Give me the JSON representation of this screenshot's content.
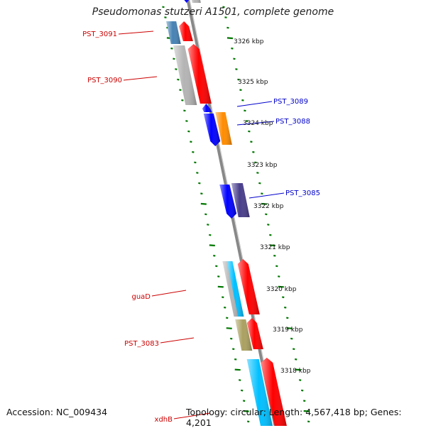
{
  "title": "Pseudomonas stutzeri A1501, complete genome",
  "footer": {
    "accession": "Accession: NC_009434",
    "topology": "Topology: circular; Length: 4,567,418 bp; Genes: 4,201"
  },
  "colors": {
    "red": "#ff0000",
    "blue": "#0000ff",
    "orange": "#ff8c00",
    "gray": "#b4b4b4",
    "cyan": "#00bfff",
    "steelblue": "#4682b4",
    "darkslateblue": "#483d8b",
    "darkkhaki": "#aaa060",
    "tick_green": "#007700",
    "backbone": "#888888"
  },
  "scale_labels": [
    "3326 kbp",
    "3325 kbp",
    "3324 kbp",
    "3323 kbp",
    "3322 kbp",
    "3321 kbp",
    "3320 kbp",
    "3319 kbp",
    "3318 kbp"
  ],
  "gene_labels": [
    {
      "name": "PST_3091",
      "color": "#cc0000"
    },
    {
      "name": "PST_3090",
      "color": "#cc0000"
    },
    {
      "name": "PST_3089",
      "color": "#0000cc"
    },
    {
      "name": "PST_3088",
      "color": "#0000cc"
    },
    {
      "name": "PST_3085",
      "color": "#0000cc"
    },
    {
      "name": "guaD",
      "color": "#cc0000"
    },
    {
      "name": "PST_3083",
      "color": "#cc0000"
    },
    {
      "name": "xdhB",
      "color": "#cc0000"
    }
  ]
}
